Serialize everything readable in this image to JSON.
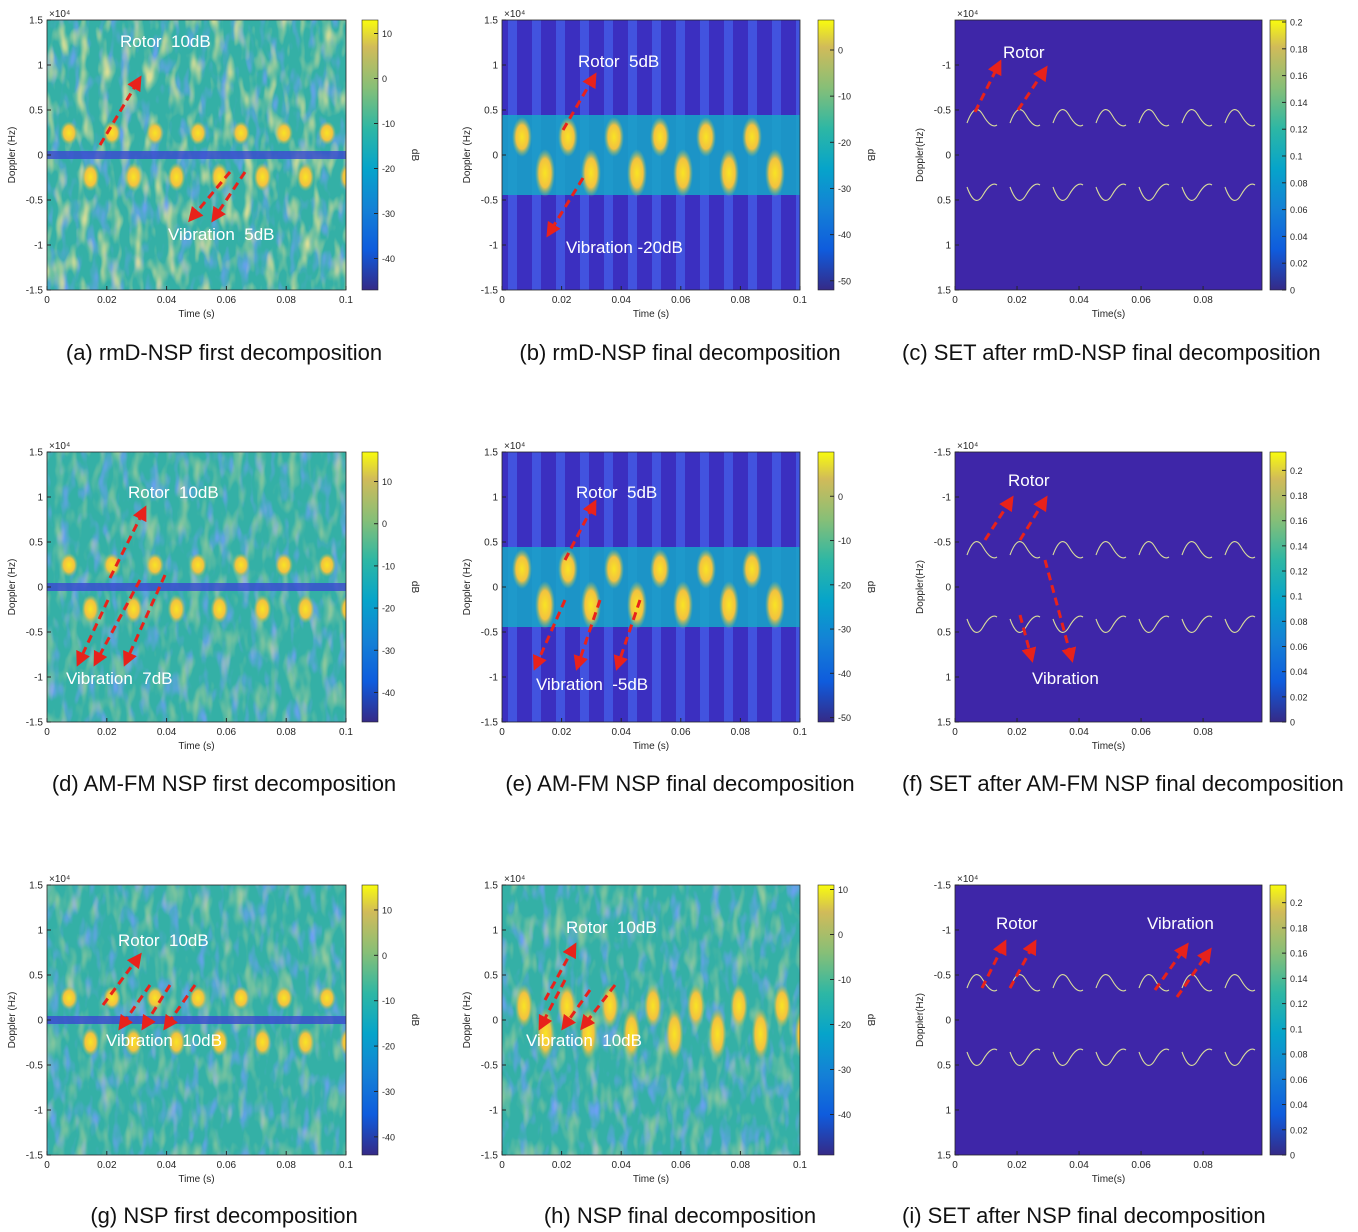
{
  "panels": [
    {
      "caption": "(a) rmD-NSP first decomposition",
      "xlabel": "Time (s)",
      "ylabel": "Doppler (Hz)",
      "scale_label": "×10⁴",
      "xlim": [
        0,
        0.1
      ],
      "xticks": [
        0,
        0.02,
        0.04,
        0.06,
        0.08,
        0.1
      ],
      "ylim": [
        -1.5,
        1.5
      ],
      "yticks": [
        -1.5,
        -1,
        -0.5,
        0,
        0.5,
        1,
        1.5
      ],
      "y_reversed": false,
      "clim": [
        -47,
        13
      ],
      "cticks": [
        -40,
        -30,
        -20,
        -10,
        0,
        10
      ],
      "clabel": "dB",
      "annotations": [
        "Rotor  10dB",
        "Vibration  5dB"
      ]
    },
    {
      "caption": "(b) rmD-NSP final decomposition",
      "xlabel": "Time (s)",
      "ylabel": "Doppler (Hz)",
      "scale_label": "×10⁴",
      "xlim": [
        0,
        0.1
      ],
      "xticks": [
        0,
        0.02,
        0.04,
        0.06,
        0.08,
        0.1
      ],
      "ylim": [
        -1.5,
        1.5
      ],
      "yticks": [
        -1.5,
        -1,
        -0.5,
        0,
        0.5,
        1,
        1.5
      ],
      "y_reversed": false,
      "clim": [
        -52,
        6.5
      ],
      "cticks": [
        -50,
        -40,
        -30,
        -20,
        -10,
        0
      ],
      "clabel": "dB",
      "annotations": [
        "Rotor  5dB",
        "Vibration -20dB"
      ]
    },
    {
      "caption": "(c) SET after rmD-NSP final decomposition",
      "xlabel": "Time(s)",
      "ylabel": "Doppler(Hz)",
      "scale_label": "×10⁴",
      "xlim": [
        0,
        0.099
      ],
      "xticks": [
        0,
        0.02,
        0.04,
        0.06,
        0.08
      ],
      "ylim": [
        -1.5,
        1.5
      ],
      "yticks": [
        -1,
        -0.5,
        0,
        0.5,
        1,
        1.5
      ],
      "y_reversed": true,
      "clim": [
        0,
        0.2015
      ],
      "cticks": [
        0,
        0.02,
        0.04,
        0.06,
        0.08,
        0.1,
        0.12,
        0.14,
        0.16,
        0.18,
        0.2
      ],
      "annotations": [
        "Rotor"
      ]
    },
    {
      "caption": "(d) AM-FM NSP first decomposition",
      "xlabel": "Time (s)",
      "ylabel": "Doppler (Hz)",
      "scale_label": "×10⁴",
      "xlim": [
        0,
        0.1
      ],
      "xticks": [
        0,
        0.02,
        0.04,
        0.06,
        0.08,
        0.1
      ],
      "ylim": [
        -1.5,
        1.5
      ],
      "yticks": [
        -1.5,
        -1,
        -0.5,
        0,
        0.5,
        1,
        1.5
      ],
      "y_reversed": false,
      "clim": [
        -47,
        17
      ],
      "cticks": [
        -40,
        -30,
        -20,
        -10,
        0,
        10
      ],
      "clabel": "dB",
      "annotations": [
        "Rotor  10dB",
        "Vibration  7dB"
      ]
    },
    {
      "caption": "(e) AM-FM NSP final decomposition",
      "xlabel": "Time (s)",
      "ylabel": "Doppler (Hz)",
      "scale_label": "×10⁴",
      "xlim": [
        0,
        0.1
      ],
      "xticks": [
        0,
        0.02,
        0.04,
        0.06,
        0.08,
        0.1
      ],
      "ylim": [
        -1.5,
        1.5
      ],
      "yticks": [
        -1.5,
        -1,
        -0.5,
        0,
        0.5,
        1,
        1.5
      ],
      "y_reversed": false,
      "clim": [
        -51,
        10
      ],
      "cticks": [
        -50,
        -40,
        -30,
        -20,
        -10,
        0
      ],
      "clabel": "dB",
      "annotations": [
        "Rotor  5dB",
        "Vibration  -5dB"
      ]
    },
    {
      "caption": "(f) SET after AM-FM NSP final decomposition",
      "xlabel": "Time(s)",
      "ylabel": "Doppler(Hz)",
      "scale_label": "×10⁴",
      "xlim": [
        0,
        0.099
      ],
      "xticks": [
        0,
        0.02,
        0.04,
        0.06,
        0.08
      ],
      "ylim": [
        -1.5,
        1.5
      ],
      "yticks": [
        -1.5,
        -1,
        -0.5,
        0,
        0.5,
        1,
        1.5
      ],
      "y_reversed": true,
      "clim": [
        0,
        0.2146
      ],
      "cticks": [
        0,
        0.02,
        0.04,
        0.06,
        0.08,
        0.1,
        0.12,
        0.14,
        0.16,
        0.18,
        0.2
      ],
      "annotations": [
        "Rotor",
        "Vibration"
      ]
    },
    {
      "caption": "(g) NSP first decomposition",
      "xlabel": "Time (s)",
      "ylabel": "Doppler (Hz)",
      "scale_label": "×10⁴",
      "xlim": [
        0,
        0.1
      ],
      "xticks": [
        0,
        0.02,
        0.04,
        0.06,
        0.08,
        0.1
      ],
      "ylim": [
        -1.5,
        1.5
      ],
      "yticks": [
        -1.5,
        -1,
        -0.5,
        0,
        0.5,
        1,
        1.5
      ],
      "y_reversed": false,
      "clim": [
        -44,
        15.5
      ],
      "cticks": [
        -40,
        -30,
        -20,
        -10,
        0,
        10
      ],
      "clabel": "dB",
      "annotations": [
        "Rotor  10dB",
        "Vibration  10dB"
      ]
    },
    {
      "caption": "(h) NSP final decomposition",
      "xlabel": "Time (s)",
      "ylabel": "Doppler (Hz)",
      "scale_label": "×10⁴",
      "xlim": [
        0,
        0.1
      ],
      "xticks": [
        0,
        0.02,
        0.04,
        0.06,
        0.08,
        0.1
      ],
      "ylim": [
        -1.5,
        1.5
      ],
      "yticks": [
        -1.5,
        -1,
        -0.5,
        0,
        0.5,
        1,
        1.5
      ],
      "y_reversed": false,
      "clim": [
        -49,
        11
      ],
      "cticks": [
        -40,
        -30,
        -20,
        -10,
        0,
        10
      ],
      "clabel": "dB",
      "annotations": [
        "Rotor  10dB",
        "Vibration  10dB"
      ]
    },
    {
      "caption": "(i) SET after NSP final decomposition",
      "xlabel": "Time(s)",
      "ylabel": "Doppler(Hz)",
      "scale_label": "×10⁴",
      "xlim": [
        0,
        0.099
      ],
      "xticks": [
        0,
        0.02,
        0.04,
        0.06,
        0.08
      ],
      "ylim": [
        -1.5,
        1.5
      ],
      "yticks": [
        -1.5,
        -1,
        -0.5,
        0,
        0.5,
        1,
        1.5
      ],
      "y_reversed": true,
      "clim": [
        0,
        0.214
      ],
      "cticks": [
        0,
        0.02,
        0.04,
        0.06,
        0.08,
        0.1,
        0.12,
        0.14,
        0.16,
        0.18,
        0.2
      ],
      "annotations": [
        "Rotor",
        "Vibration"
      ]
    }
  ]
}
